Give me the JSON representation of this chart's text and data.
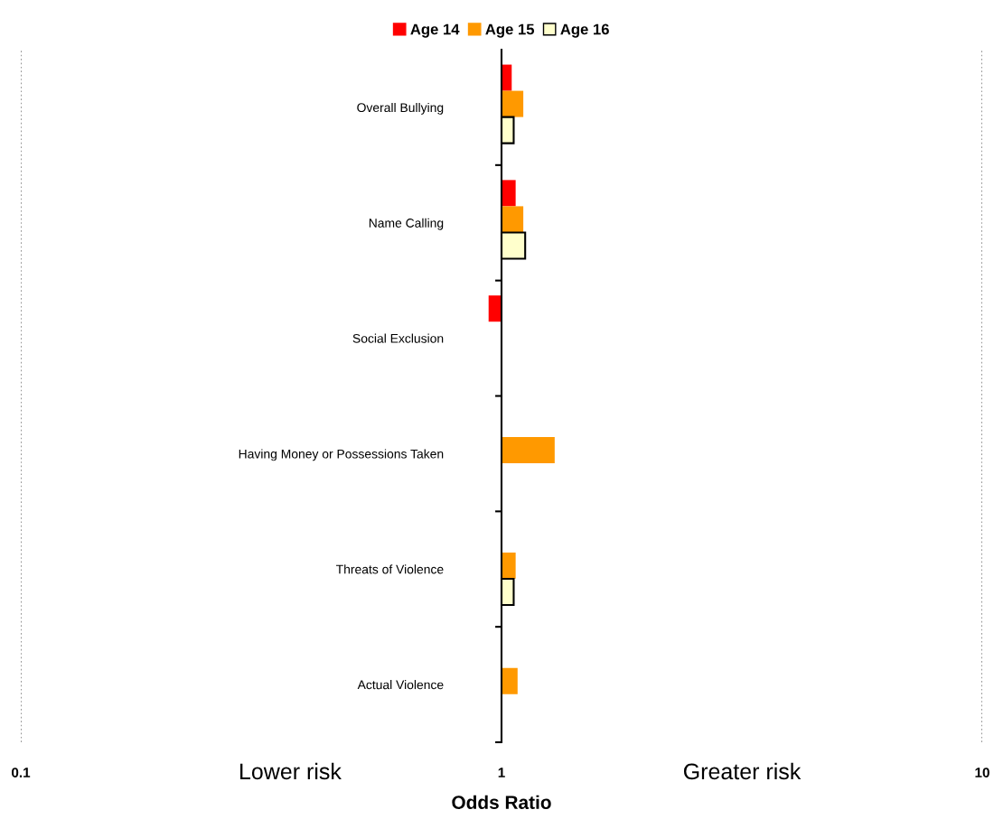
{
  "chart_data": {
    "type": "bar",
    "orientation": "horizontal",
    "log": "x",
    "categories": [
      "Overall Bullying",
      "Name Calling",
      "Social Exclusion",
      "Having Money or Possessions Taken",
      "Threats of Violence",
      "Actual Violence"
    ],
    "series": [
      {
        "name": "Age 14",
        "color": "#ff0000",
        "base": [
          1,
          1,
          1,
          null,
          null,
          null
        ],
        "values": [
          0.05,
          0.07,
          -0.06,
          null,
          null,
          null
        ]
      },
      {
        "name": "Age 15",
        "color": "#ff9900",
        "base": [
          1,
          1,
          null,
          1,
          1,
          1
        ],
        "values": [
          0.11,
          0.11,
          null,
          0.29,
          0.07,
          0.08
        ]
      },
      {
        "name": "Age 16",
        "color": "#ffffcc",
        "base": [
          1,
          1,
          null,
          null,
          1,
          null
        ],
        "values": [
          0.06,
          0.12,
          null,
          null,
          0.06,
          null
        ]
      }
    ],
    "xlim": [
      0.1,
      10
    ],
    "xticks": [
      0.1,
      1,
      10
    ],
    "xlabel": "Odds Ratio",
    "ref_lines": [
      {
        "axis": "x",
        "value": 1,
        "color": "#000000"
      },
      {
        "axis": "x",
        "value": 0.1,
        "color": "#808080",
        "line_style": "dotted"
      },
      {
        "axis": "x",
        "value": 10,
        "color": "#808080",
        "line_style": "dotted"
      }
    ],
    "annotations": [
      "Lower risk",
      "Greater risk"
    ],
    "legend": "top"
  }
}
